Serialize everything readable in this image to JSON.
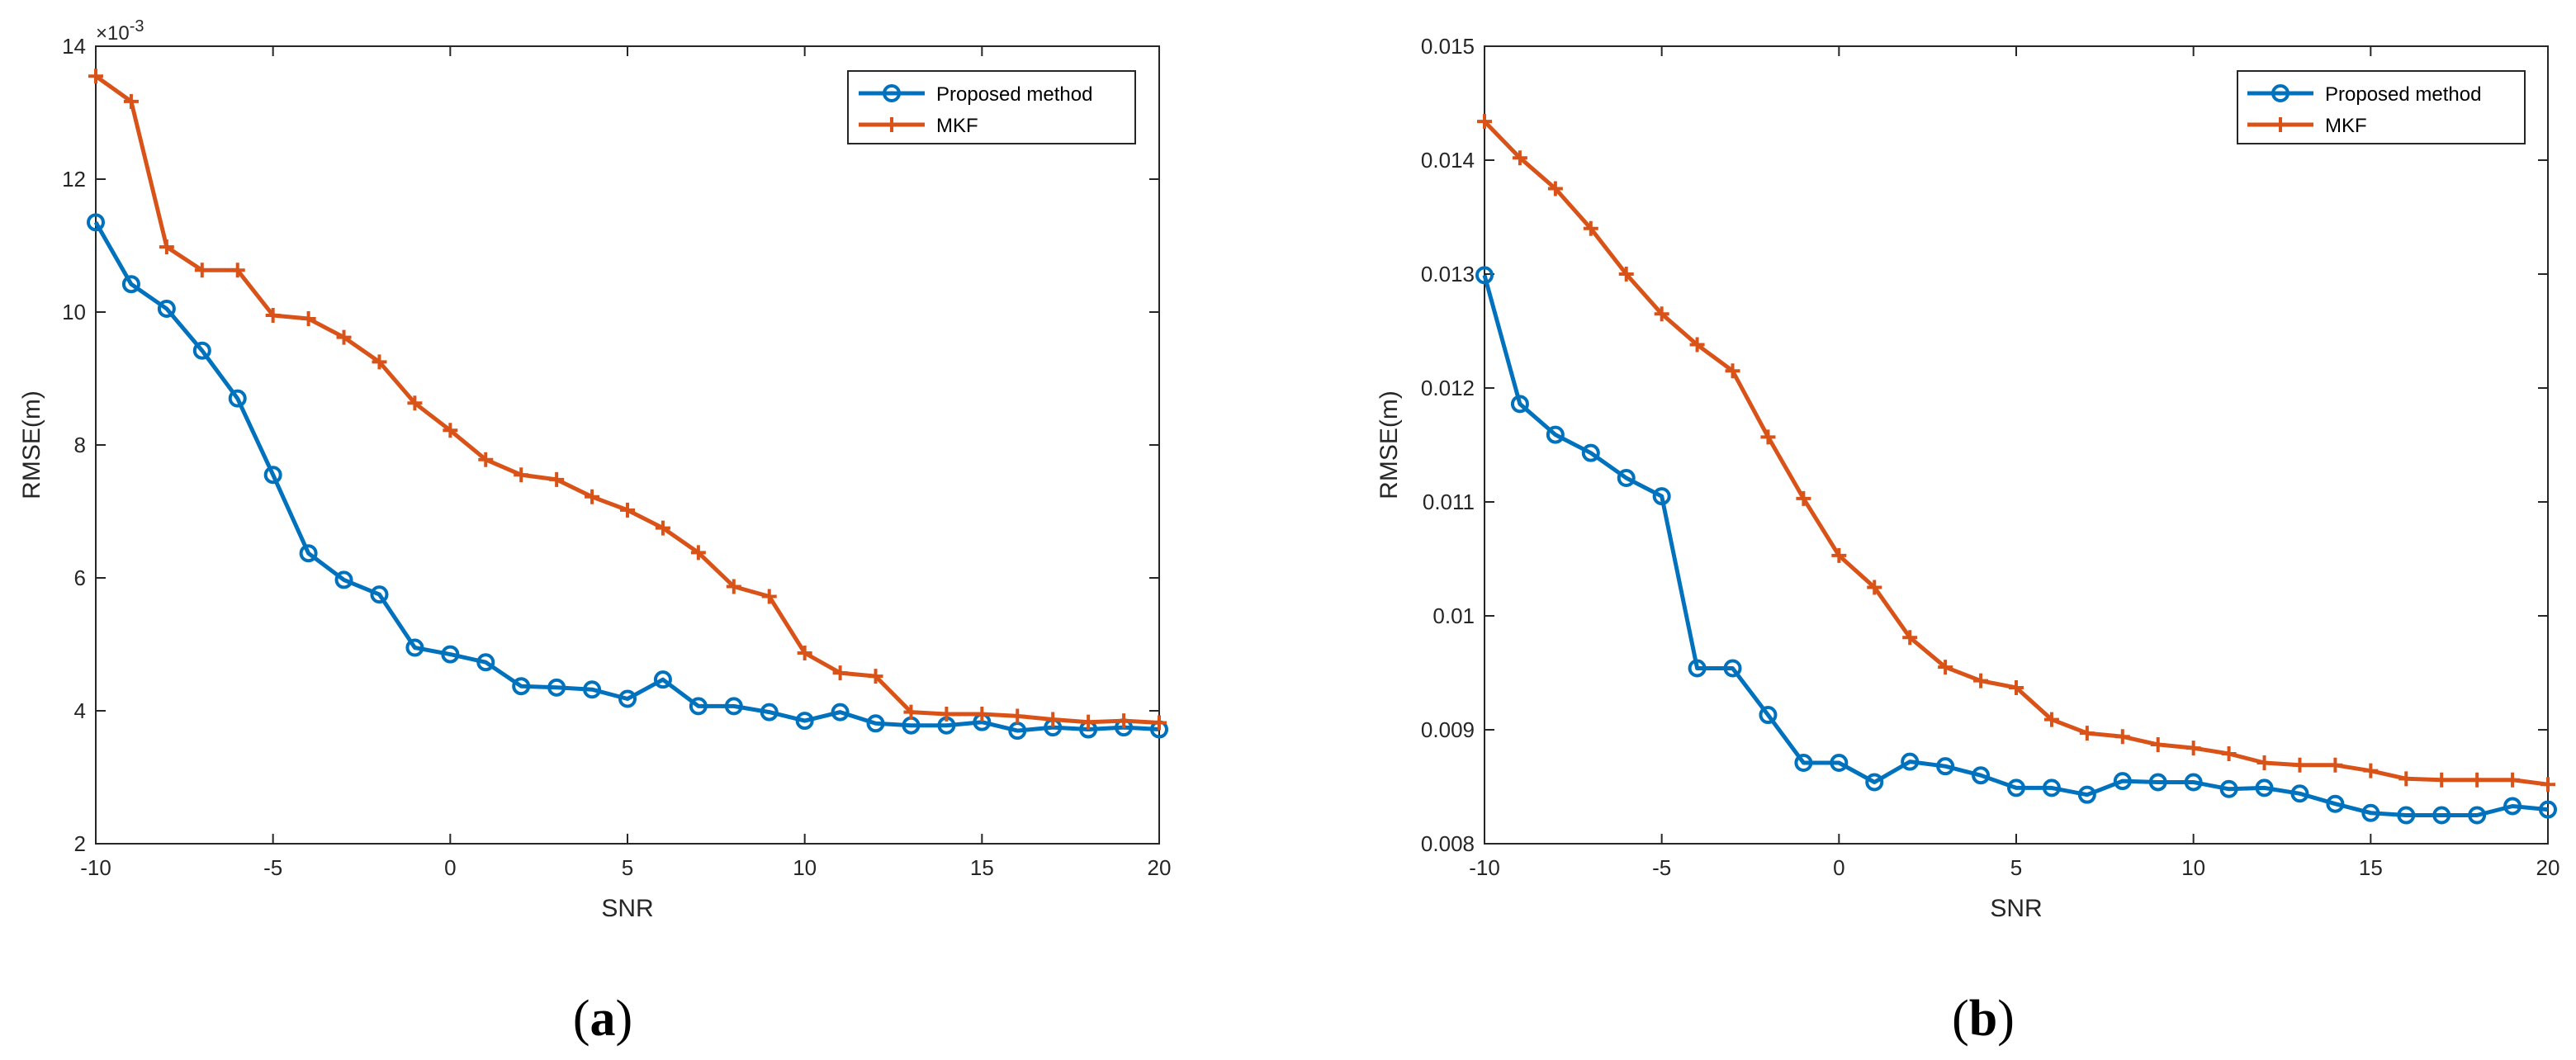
{
  "chart_data": [
    {
      "type": "line",
      "caption_open": "(",
      "caption_letter": "a",
      "caption_close": ")",
      "title": "",
      "xlabel": "SNR",
      "ylabel": "RMSE(m)",
      "xlim": [
        -10,
        20
      ],
      "ylim": [
        2,
        14
      ],
      "xticks": [
        -10,
        -5,
        0,
        5,
        10,
        15,
        20
      ],
      "xtick_labels": [
        "-10",
        "-5",
        "0",
        "5",
        "10",
        "15",
        "20"
      ],
      "yticks": [
        2,
        4,
        6,
        8,
        10,
        12,
        14
      ],
      "ytick_labels": [
        "2",
        "4",
        "6",
        "8",
        "10",
        "12",
        "14"
      ],
      "exponent_label": "×10",
      "exponent_power": "-3",
      "legend_position": "top-right",
      "grid": false,
      "x": [
        -10,
        -9,
        -8,
        -7,
        -6,
        -5,
        -4,
        -3,
        -2,
        -1,
        0,
        1,
        2,
        3,
        4,
        5,
        6,
        7,
        8,
        9,
        10,
        11,
        12,
        13,
        14,
        15,
        16,
        17,
        18,
        19,
        20
      ],
      "series": [
        {
          "name": "Proposed method",
          "color": "#0072BD",
          "marker": "circle",
          "values": [
            11.35,
            10.42,
            10.05,
            9.42,
            8.7,
            7.55,
            6.37,
            5.97,
            5.75,
            4.95,
            4.85,
            4.73,
            4.37,
            4.35,
            4.32,
            4.18,
            4.47,
            4.07,
            4.07,
            3.98,
            3.85,
            3.98,
            3.81,
            3.78,
            3.78,
            3.83,
            3.7,
            3.75,
            3.72,
            3.75,
            3.72
          ]
        },
        {
          "name": "MKF",
          "color": "#D95319",
          "marker": "plus",
          "values": [
            13.55,
            13.17,
            10.98,
            10.63,
            10.63,
            9.95,
            9.9,
            9.62,
            9.25,
            8.63,
            8.22,
            7.78,
            7.55,
            7.48,
            7.22,
            7.02,
            6.75,
            6.38,
            5.87,
            5.72,
            4.87,
            4.57,
            4.52,
            3.98,
            3.95,
            3.95,
            3.92,
            3.87,
            3.83,
            3.85,
            3.82
          ]
        }
      ]
    },
    {
      "type": "line",
      "caption_open": "(",
      "caption_letter": "b",
      "caption_close": ")",
      "title": "",
      "xlabel": "SNR",
      "ylabel": "RMSE(m)",
      "xlim": [
        -10,
        20
      ],
      "ylim": [
        0.008,
        0.015
      ],
      "xticks": [
        -10,
        -5,
        0,
        5,
        10,
        15,
        20
      ],
      "xtick_labels": [
        "-10",
        "-5",
        "0",
        "5",
        "10",
        "15",
        "20"
      ],
      "yticks": [
        0.008,
        0.009,
        0.01,
        0.011,
        0.012,
        0.013,
        0.014,
        0.015
      ],
      "ytick_labels": [
        "0.008",
        "0.009",
        "0.01",
        "0.011",
        "0.012",
        "0.013",
        "0.014",
        "0.015"
      ],
      "exponent_label": "",
      "exponent_power": "",
      "legend_position": "top-right",
      "grid": false,
      "x": [
        -10,
        -9,
        -8,
        -7,
        -6,
        -5,
        -4,
        -3,
        -2,
        -1,
        0,
        1,
        2,
        3,
        4,
        5,
        6,
        7,
        8,
        9,
        10,
        11,
        12,
        13,
        14,
        15,
        16,
        17,
        18,
        19,
        20
      ],
      "series": [
        {
          "name": "Proposed method",
          "color": "#0072BD",
          "marker": "circle",
          "values": [
            0.01299,
            0.01186,
            0.01159,
            0.01143,
            0.01121,
            0.01105,
            0.00954,
            0.00954,
            0.00913,
            0.00871,
            0.00871,
            0.00854,
            0.00872,
            0.00868,
            0.0086,
            0.00849,
            0.00849,
            0.00843,
            0.00855,
            0.00854,
            0.00854,
            0.00848,
            0.00849,
            0.00844,
            0.00835,
            0.00827,
            0.00825,
            0.00825,
            0.00825,
            0.00833,
            0.0083
          ]
        },
        {
          "name": "MKF",
          "color": "#D95319",
          "marker": "plus",
          "values": [
            0.01434,
            0.01402,
            0.01375,
            0.0134,
            0.013,
            0.01265,
            0.01238,
            0.01215,
            0.01157,
            0.01103,
            0.01053,
            0.01025,
            0.00981,
            0.00955,
            0.00943,
            0.00937,
            0.00909,
            0.00897,
            0.00894,
            0.00887,
            0.00884,
            0.00879,
            0.00871,
            0.00869,
            0.00869,
            0.00864,
            0.00857,
            0.00856,
            0.00856,
            0.00856,
            0.00852
          ]
        }
      ]
    }
  ]
}
